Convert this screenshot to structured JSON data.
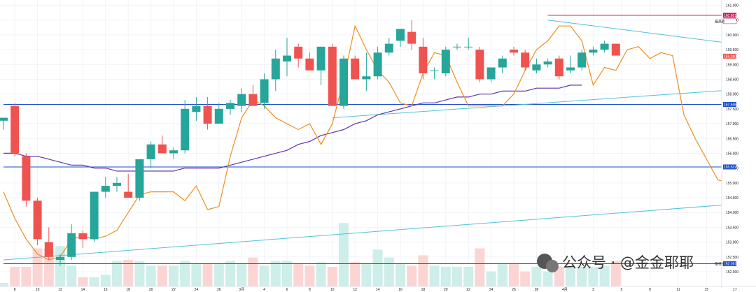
{
  "chart_data": {
    "type": "candlestick",
    "title": "",
    "xlabel": "",
    "ylabel": "",
    "ylim": [
      152.0,
      161.0
    ],
    "grid": true,
    "colors": {
      "up": "#26a69a",
      "down": "#ef5350",
      "vol_up": "#cdeee9",
      "vol_down": "#fbd5d4",
      "ma_line": "#5e35b1",
      "lagging_line": "#ef8f1e",
      "trend_line": "#4fc3d9",
      "level_line": "#1e50c8",
      "top_line": "#c2185b"
    },
    "y_ticks": [
      "161.000",
      "160.500",
      "160.000",
      "159.500",
      "159.000",
      "158.500",
      "158.000",
      "157.500",
      "157.000",
      "156.500",
      "156.000",
      "155.500",
      "155.000",
      "154.500",
      "154.000",
      "153.500",
      "153.000",
      "152.500",
      "152.000"
    ],
    "x_ticks": [
      {
        "label": "8",
        "i": 1.0
      },
      {
        "label": "10",
        "i": 3.0
      },
      {
        "label": "12",
        "i": 5.0
      },
      {
        "label": "14",
        "i": 7.0
      },
      {
        "label": "16",
        "i": 9.0
      },
      {
        "label": "18",
        "i": 11.0
      },
      {
        "label": "20",
        "i": 13.0
      },
      {
        "label": "22",
        "i": 15.0
      },
      {
        "label": "24",
        "i": 17.0
      },
      {
        "label": "26",
        "i": 19.0
      },
      {
        "label": "3月",
        "i": 21.0
      },
      {
        "label": "4",
        "i": 23.0
      },
      {
        "label": "6",
        "i": 25.0
      },
      {
        "label": "8",
        "i": 27.0
      },
      {
        "label": "10",
        "i": 29.0
      },
      {
        "label": "12",
        "i": 31.0
      },
      {
        "label": "14",
        "i": 33.0
      },
      {
        "label": "16",
        "i": 35.0
      },
      {
        "label": "18",
        "i": 37.0
      },
      {
        "label": "20",
        "i": 39.0
      },
      {
        "label": "22",
        "i": 41.0
      },
      {
        "label": "24",
        "i": 43.0
      },
      {
        "label": "26",
        "i": 45.0
      },
      {
        "label": "28",
        "i": 47.0
      },
      {
        "label": "4月",
        "i": 49.5
      },
      {
        "label": "3",
        "i": 52.0
      },
      {
        "label": "5",
        "i": 54.5
      },
      {
        "label": "9",
        "i": 57.0
      },
      {
        "label": "11",
        "i": 59.5
      },
      {
        "label": "15",
        "i": 62.0
      },
      {
        "label": "17",
        "i": 64.5
      },
      {
        "label": "21",
        "i": 67.0
      },
      {
        "label": "23",
        "i": 69.5
      },
      {
        "label": "27",
        "i": 72.0
      },
      {
        "label": "29",
        "i": 74.5
      },
      {
        "label": "1",
        "i": 77.0
      },
      {
        "label": "5",
        "i": 79.5
      },
      {
        "label": "7",
        "i": 82.0
      }
    ],
    "price_labels": [
      {
        "value": "160.661",
        "price": 160.66,
        "color": "#c2185b"
      },
      {
        "value": "160.461",
        "price": 160.46,
        "color": "#ffffff",
        "text_color": "#131722",
        "caption": "最高价"
      },
      {
        "value": "159.280",
        "price": 159.28,
        "color": "#ef5350"
      },
      {
        "value": "157.646",
        "price": 157.65,
        "color": "#1e50c8"
      },
      {
        "value": "155.537",
        "price": 155.54,
        "color": "#1e50c8"
      },
      {
        "value": "152.267",
        "price": 152.27,
        "color": "#1e50c8",
        "caption": "最低价"
      }
    ],
    "candles": [
      {
        "o": 157.1,
        "h": 157.2,
        "l": 156.8,
        "c": 157.2
      },
      {
        "o": 157.6,
        "h": 157.7,
        "l": 155.9,
        "c": 156.0
      },
      {
        "o": 155.9,
        "h": 156.0,
        "l": 154.2,
        "c": 154.4
      },
      {
        "o": 154.4,
        "h": 154.5,
        "l": 152.9,
        "c": 153.1
      },
      {
        "o": 153.0,
        "h": 153.5,
        "l": 152.4,
        "c": 152.5
      },
      {
        "o": 152.4,
        "h": 152.6,
        "l": 152.2,
        "c": 152.5
      },
      {
        "o": 152.5,
        "h": 153.6,
        "l": 152.4,
        "c": 153.3
      },
      {
        "o": 153.3,
        "h": 153.4,
        "l": 152.8,
        "c": 153.1
      },
      {
        "o": 153.1,
        "h": 154.7,
        "l": 153.0,
        "c": 154.7
      },
      {
        "o": 154.7,
        "h": 155.2,
        "l": 154.5,
        "c": 154.9
      },
      {
        "o": 154.9,
        "h": 155.2,
        "l": 154.7,
        "c": 155.0
      },
      {
        "o": 154.7,
        "h": 155.3,
        "l": 154.5,
        "c": 154.5
      },
      {
        "o": 154.5,
        "h": 155.8,
        "l": 154.4,
        "c": 155.8
      },
      {
        "o": 155.8,
        "h": 156.4,
        "l": 155.5,
        "c": 156.3
      },
      {
        "o": 156.3,
        "h": 156.6,
        "l": 156.0,
        "c": 156.0
      },
      {
        "o": 156.0,
        "h": 156.2,
        "l": 155.8,
        "c": 156.1
      },
      {
        "o": 156.1,
        "h": 157.8,
        "l": 156.0,
        "c": 157.5
      },
      {
        "o": 157.4,
        "h": 157.9,
        "l": 157.1,
        "c": 157.6
      },
      {
        "o": 157.6,
        "h": 157.9,
        "l": 156.8,
        "c": 157.0
      },
      {
        "o": 157.0,
        "h": 157.7,
        "l": 157.0,
        "c": 157.5
      },
      {
        "o": 157.5,
        "h": 157.8,
        "l": 157.3,
        "c": 157.7
      },
      {
        "o": 157.6,
        "h": 158.2,
        "l": 157.4,
        "c": 158.0
      },
      {
        "o": 158.0,
        "h": 158.3,
        "l": 157.6,
        "c": 157.6
      },
      {
        "o": 157.7,
        "h": 158.7,
        "l": 157.5,
        "c": 158.5
      },
      {
        "o": 158.5,
        "h": 159.5,
        "l": 158.1,
        "c": 159.2
      },
      {
        "o": 159.1,
        "h": 159.9,
        "l": 158.6,
        "c": 159.3
      },
      {
        "o": 159.6,
        "h": 159.7,
        "l": 158.9,
        "c": 159.2
      },
      {
        "o": 159.2,
        "h": 159.4,
        "l": 158.8,
        "c": 158.8
      },
      {
        "o": 158.8,
        "h": 159.6,
        "l": 158.3,
        "c": 159.6
      },
      {
        "o": 159.6,
        "h": 159.7,
        "l": 157.6,
        "c": 157.6
      },
      {
        "o": 157.6,
        "h": 159.3,
        "l": 157.5,
        "c": 159.2
      },
      {
        "o": 159.2,
        "h": 159.3,
        "l": 158.5,
        "c": 158.5
      },
      {
        "o": 158.5,
        "h": 159.4,
        "l": 158.1,
        "c": 158.6
      },
      {
        "o": 158.6,
        "h": 159.6,
        "l": 158.5,
        "c": 159.4
      },
      {
        "o": 159.4,
        "h": 159.9,
        "l": 159.3,
        "c": 159.7
      },
      {
        "o": 159.8,
        "h": 160.2,
        "l": 159.6,
        "c": 160.2
      },
      {
        "o": 160.1,
        "h": 160.5,
        "l": 159.5,
        "c": 159.7
      },
      {
        "o": 159.6,
        "h": 159.9,
        "l": 158.5,
        "c": 158.7
      },
      {
        "o": 158.8,
        "h": 158.9,
        "l": 158.5,
        "c": 158.8
      },
      {
        "o": 158.7,
        "h": 159.6,
        "l": 158.6,
        "c": 159.5
      },
      {
        "o": 159.6,
        "h": 159.7,
        "l": 159.5,
        "c": 159.6
      },
      {
        "o": 159.6,
        "h": 159.9,
        "l": 159.5,
        "c": 159.6
      },
      {
        "o": 159.5,
        "h": 159.6,
        "l": 158.4,
        "c": 158.5
      },
      {
        "o": 158.5,
        "h": 158.9,
        "l": 158.4,
        "c": 158.9
      },
      {
        "o": 158.9,
        "h": 159.3,
        "l": 158.7,
        "c": 159.2
      },
      {
        "o": 159.5,
        "h": 159.6,
        "l": 159.3,
        "c": 159.4
      },
      {
        "o": 159.4,
        "h": 159.5,
        "l": 158.8,
        "c": 158.9
      },
      {
        "o": 158.8,
        "h": 159.2,
        "l": 158.7,
        "c": 159.0
      },
      {
        "o": 159.0,
        "h": 159.2,
        "l": 158.9,
        "c": 159.1
      },
      {
        "o": 159.2,
        "h": 159.3,
        "l": 158.5,
        "c": 158.6
      },
      {
        "o": 158.8,
        "h": 159.3,
        "l": 158.7,
        "c": 158.9
      },
      {
        "o": 158.9,
        "h": 159.5,
        "l": 158.8,
        "c": 159.4
      },
      {
        "o": 159.4,
        "h": 159.6,
        "l": 159.3,
        "c": 159.5
      },
      {
        "o": 159.5,
        "h": 159.8,
        "l": 159.4,
        "c": 159.7
      },
      {
        "o": 159.7,
        "h": 159.7,
        "l": 159.3,
        "c": 159.3
      }
    ],
    "volume_ylim": [
      0,
      100
    ],
    "volume": [
      3,
      17,
      17,
      33,
      33,
      35,
      18,
      8,
      8,
      10,
      22,
      23,
      22,
      18,
      18,
      18,
      22,
      20,
      20,
      20,
      22,
      20,
      25,
      18,
      22,
      22,
      20,
      18,
      21,
      17,
      55,
      21,
      20,
      32,
      25,
      20,
      18,
      27,
      18,
      17,
      17,
      17,
      33,
      13,
      20,
      20,
      13,
      17,
      13,
      17,
      17,
      17,
      17,
      18,
      22
    ],
    "ma_line": [
      156.0,
      156.0,
      155.9,
      155.9,
      155.8,
      155.7,
      155.6,
      155.6,
      155.5,
      155.5,
      155.4,
      155.4,
      155.4,
      155.4,
      155.4,
      155.4,
      155.5,
      155.5,
      155.5,
      155.5,
      155.6,
      155.7,
      155.8,
      155.9,
      156.0,
      156.1,
      156.3,
      156.4,
      156.6,
      156.7,
      156.8,
      157.0,
      157.1,
      157.3,
      157.4,
      157.5,
      157.6,
      157.7,
      157.7,
      157.8,
      157.9,
      157.9,
      158.0,
      158.0,
      158.1,
      158.1,
      158.1,
      158.2,
      158.2,
      158.2,
      158.3,
      158.3
    ],
    "lagging_line": [
      154.7,
      153.8,
      153.1,
      152.6,
      152.4,
      152.5,
      153.1,
      153.2,
      153.1,
      153.2,
      153.4,
      154.0,
      154.6,
      154.7,
      154.7,
      154.7,
      154.4,
      154.9,
      154.1,
      154.2,
      155.9,
      157.2,
      157.8,
      157.6,
      157.2,
      157.0,
      156.8,
      157.0,
      156.3,
      157.0,
      158.5,
      160.3,
      159.5,
      158.8,
      158.4,
      157.7,
      157.6,
      158.7,
      159.4,
      159.3,
      158.4,
      157.6,
      157.6,
      157.6,
      157.6,
      158.0,
      158.8,
      159.5,
      159.8,
      160.3,
      160.3,
      159.8,
      158.3,
      158.9,
      158.8,
      159.5,
      159.6,
      159.2,
      159.4,
      159.3,
      157.3,
      156.5,
      155.8,
      155.1,
      155.0,
      155.2,
      155.3,
      155.0,
      155.6,
      156.0,
      156.6,
      156.1
    ],
    "trend_lines": [
      {
        "from": [
          48,
          160.5
        ],
        "to": [
          89,
          158.5
        ]
      },
      {
        "from": [
          0,
          152.4
        ],
        "to": [
          89,
          155.0
        ]
      },
      {
        "from": [
          29,
          157.2
        ],
        "to": [
          89,
          158.8
        ]
      }
    ],
    "horizontal_levels": [
      {
        "from": 48,
        "price": 160.66,
        "color": "#c2185b"
      },
      {
        "from": 0,
        "price": 157.65,
        "color": "#1e50c8"
      },
      {
        "from": 0,
        "price": 155.54,
        "color": "#1e50c8"
      },
      {
        "from": 0,
        "price": 152.27,
        "color": "#1e50c8"
      }
    ],
    "watermark": "公众号 · @金金耶耶"
  }
}
